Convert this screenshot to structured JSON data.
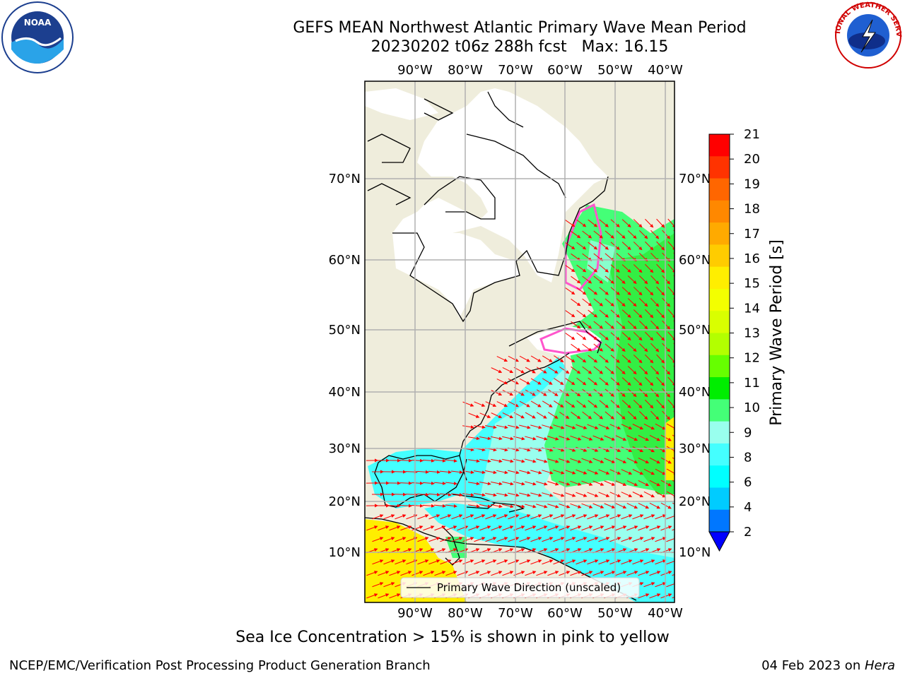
{
  "title": {
    "line1": "GEFS MEAN Northwest Atlantic Primary Wave Mean Period",
    "line2": "20230202 t06z 288h fcst   Max: 16.15"
  },
  "map": {
    "lon_labels": [
      "90°W",
      "80°W",
      "70°W",
      "60°W",
      "50°W",
      "40°W"
    ],
    "lat_labels": [
      "70°N",
      "60°N",
      "50°N",
      "40°N",
      "30°N",
      "20°N",
      "10°N"
    ],
    "legend_label": "Primary Wave Direction (unscaled)",
    "colors": {
      "land": "#efeddc",
      "ice": "#ffffff",
      "arrows": "#ff0000",
      "coastline": "#000000",
      "grid": "#b0b0b0"
    }
  },
  "colorbar": {
    "label": "Primary Wave Period [s]",
    "ticks": [
      "21",
      "20",
      "19",
      "18",
      "17",
      "16",
      "15",
      "14",
      "13",
      "12",
      "11",
      "10",
      "9",
      "8",
      "6",
      "4",
      "2"
    ],
    "colors": [
      "#ff0000",
      "#ff3300",
      "#ff6600",
      "#ff8800",
      "#ffaa00",
      "#ffcc00",
      "#ffee00",
      "#f3ff00",
      "#d9ff00",
      "#b3ff00",
      "#66ff00",
      "#00ee00",
      "#44ff77",
      "#99ffee",
      "#44ffff",
      "#00ffff",
      "#00ccff",
      "#0077ff"
    ],
    "extend_color": "#0000ff"
  },
  "caption": "Sea Ice Concentration > 15% is shown in pink to yellow",
  "footer": {
    "left": "NCEP/EMC/Verification Post Processing Product Generation Branch",
    "right_date": "04 Feb 2023 on ",
    "right_machine": "Hera"
  },
  "logos": {
    "noaa": "NOAA",
    "nws": "NATIONAL WEATHER SERVICE"
  }
}
